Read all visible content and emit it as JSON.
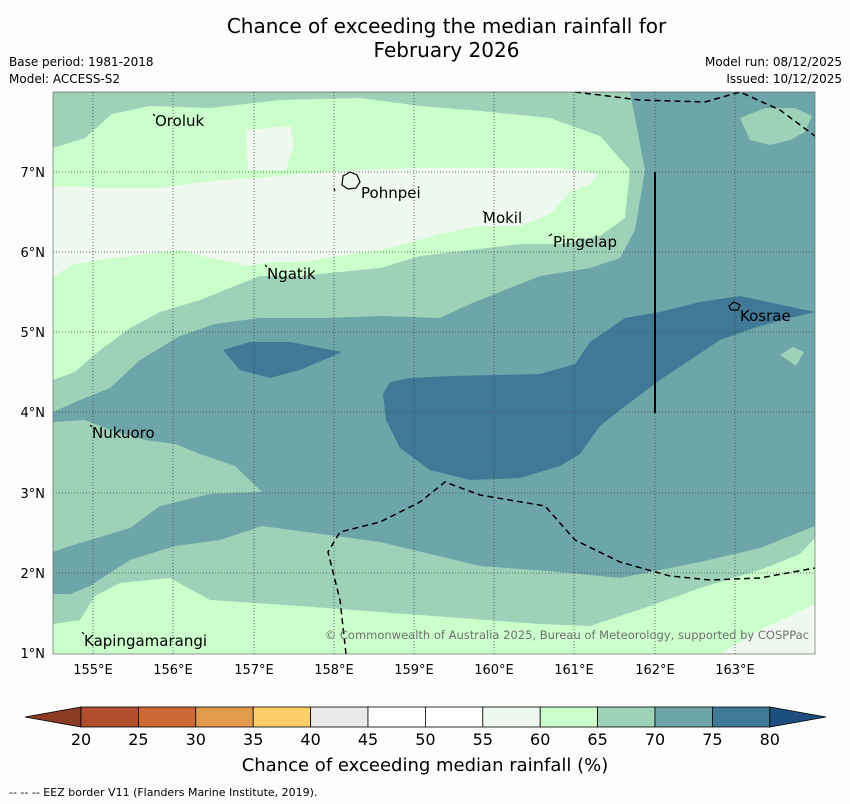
{
  "title": {
    "line1": "Chance of exceeding the median rainfall for",
    "line2": "February 2026"
  },
  "meta": {
    "base_period": "Base period: 1981-2018",
    "model": "Model: ACCESS-S2",
    "model_run": "Model run: 08/12/2025",
    "issued": "Issued: 10/12/2025"
  },
  "map": {
    "lat_labels": [
      "7°N",
      "6°N",
      "5°N",
      "4°N",
      "3°N",
      "2°N",
      "1°N"
    ],
    "lon_labels": [
      "155°E",
      "156°E",
      "157°E",
      "158°E",
      "159°E",
      "160°E",
      "161°E",
      "162°E",
      "163°E"
    ],
    "places": [
      "Oroluk",
      "Pohnpei",
      "Mokil",
      "Pingelap",
      "Ngatik",
      "Kosrae",
      "Nukuoro",
      "Kapingamarangi"
    ],
    "copyright": "© Commonwealth of Australia 2025, Bureau of Meteorology, supported by COSPPac"
  },
  "colorbar": {
    "ticks": [
      "20",
      "25",
      "30",
      "35",
      "40",
      "45",
      "50",
      "55",
      "60",
      "65",
      "70",
      "75",
      "80"
    ],
    "colors": [
      "#b14f2d",
      "#cd6934",
      "#e49a4b",
      "#fdce6a",
      "#e9e9e9",
      "#ffffff",
      "#ffffff",
      "#eef8ee",
      "#ccfecc",
      "#9ed2b8",
      "#6ea5a8",
      "#407996"
    ],
    "under_color": "#8b3a23",
    "over_color": "#1d4e7e",
    "label": "Chance of exceeding median rainfall (%)"
  },
  "footnote": "--  --  -- EEZ border V11 (Flanders Marine Institute, 2019)."
}
